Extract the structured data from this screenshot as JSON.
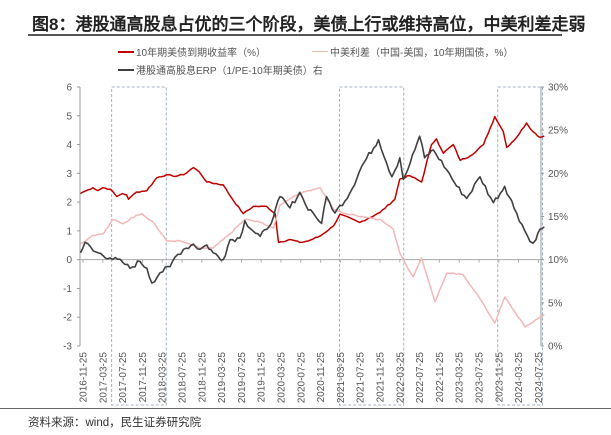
{
  "title": "图8：港股通高股息占优的三个阶段，美债上行或维持高位，中美利差走弱",
  "source": "资料来源：wind，民生证券研究院",
  "chart_data": {
    "type": "line",
    "title": "图8：港股通高股息占优的三个阶段，美债上行或维持高位，中美利差走弱",
    "x_unit": "months since 2016-11-25",
    "x_ticks": [
      "2016-11-25",
      "2017-03-25",
      "2017-07-25",
      "2017-11-25",
      "2018-03-25",
      "2018-07-25",
      "2018-11-25",
      "2019-03-25",
      "2019-07-25",
      "2019-11-25",
      "2020-03-25",
      "2020-07-25",
      "2020-11-25",
      "2021-03-25",
      "2021-07-25",
      "2021-11-25",
      "2022-03-25",
      "2022-07-25",
      "2022-11-25",
      "2023-03-25",
      "2023-07-25",
      "2023-11-25",
      "2024-03-25",
      "2024-07-25"
    ],
    "y_left": {
      "ylim": [
        -3,
        6
      ],
      "ticks": [
        "-3",
        "-2",
        "-1",
        "0",
        "1",
        "2",
        "3",
        "4",
        "5",
        "6"
      ]
    },
    "y_right": {
      "ylim": [
        0,
        30
      ],
      "ticks": [
        "0%",
        "5%",
        "10%",
        "15%",
        "20%",
        "25%",
        "30%"
      ]
    },
    "highlight_periods": [
      [
        "2017-05",
        "2018-03"
      ],
      [
        "2021-03",
        "2022-03"
      ],
      [
        "2023-11",
        "2024-07"
      ]
    ],
    "series": [
      {
        "name": "10年期美债到期收益率（%）",
        "axis": "left",
        "color": "#c00000",
        "points": [
          [
            -0.5,
            2.3
          ],
          [
            0,
            2.35
          ],
          [
            2,
            2.5
          ],
          [
            3,
            2.4
          ],
          [
            4,
            2.5
          ],
          [
            5.5,
            2.45
          ],
          [
            6.8,
            2.2
          ],
          [
            8,
            2.3
          ],
          [
            8.8,
            2.25
          ],
          [
            9.2,
            2.1
          ],
          [
            10.8,
            2.35
          ],
          [
            12.9,
            2.4
          ],
          [
            14.9,
            2.85
          ],
          [
            16.9,
            2.95
          ],
          [
            18.2,
            2.9
          ],
          [
            20.3,
            2.95
          ],
          [
            22.3,
            3.2
          ],
          [
            23.5,
            3.05
          ],
          [
            25,
            2.7
          ],
          [
            28.3,
            2.6
          ],
          [
            30.4,
            2.05
          ],
          [
            32.4,
            1.6
          ],
          [
            34.4,
            1.85
          ],
          [
            37.1,
            1.85
          ],
          [
            38.8,
            1.6
          ],
          [
            39.5,
            0.6
          ],
          [
            41.8,
            0.7
          ],
          [
            43.8,
            0.6
          ],
          [
            45.5,
            0.65
          ],
          [
            47.9,
            0.82
          ],
          [
            50.6,
            1.17
          ],
          [
            51.9,
            1.58
          ],
          [
            55.9,
            1.29
          ],
          [
            60,
            1.64
          ],
          [
            63,
            2.1
          ],
          [
            64,
            2.8
          ],
          [
            66,
            2.92
          ],
          [
            68.4,
            2.7
          ],
          [
            70.4,
            4.0
          ],
          [
            71.4,
            4.2
          ],
          [
            72.8,
            3.7
          ],
          [
            74.8,
            4.0
          ],
          [
            76.2,
            3.45
          ],
          [
            78.2,
            3.6
          ],
          [
            80.9,
            4.0
          ],
          [
            83.2,
            4.97
          ],
          [
            84.9,
            4.45
          ],
          [
            85.6,
            3.9
          ],
          [
            87.6,
            4.25
          ],
          [
            89.6,
            4.75
          ],
          [
            90.9,
            4.45
          ],
          [
            92.3,
            4.25
          ],
          [
            93.2,
            4.3
          ]
        ]
      },
      {
        "name": "中美利差（中国-美国，10年期国债，%）",
        "axis": "left",
        "color": "#f2b8b8",
        "points": [
          [
            -0.5,
            0.55
          ],
          [
            0,
            0.6
          ],
          [
            2,
            0.85
          ],
          [
            4.1,
            0.9
          ],
          [
            6.1,
            1.4
          ],
          [
            8.1,
            1.25
          ],
          [
            10.8,
            1.55
          ],
          [
            11.9,
            1.6
          ],
          [
            14.2,
            1.3
          ],
          [
            16.9,
            0.65
          ],
          [
            19.6,
            0.65
          ],
          [
            23.6,
            0.4
          ],
          [
            26.3,
            0.4
          ],
          [
            29.7,
            0.9
          ],
          [
            32.7,
            1.4
          ],
          [
            35.8,
            1.3
          ],
          [
            38.5,
            1.1
          ],
          [
            39.8,
            1.9
          ],
          [
            42.5,
            2.2
          ],
          [
            45.5,
            2.4
          ],
          [
            47.9,
            2.5
          ],
          [
            50.6,
            1.75
          ],
          [
            53,
            1.6
          ],
          [
            60,
            1.4
          ],
          [
            62.7,
            1.05
          ],
          [
            64,
            0.23
          ],
          [
            66.7,
            -0.6
          ],
          [
            68.4,
            0.06
          ],
          [
            71.1,
            -1.46
          ],
          [
            73.5,
            -0.47
          ],
          [
            76.8,
            -0.53
          ],
          [
            79.5,
            -1.17
          ],
          [
            83.2,
            -2.2
          ],
          [
            85.2,
            -1.3
          ],
          [
            89.3,
            -2.34
          ],
          [
            92.3,
            -2.0
          ],
          [
            93.2,
            -1.9
          ]
        ]
      },
      {
        "name": "港股通高股息ERP（1/PE-10年期美债）右",
        "axis": "right",
        "color": "#404040",
        "points": [
          [
            -0.5,
            10.8
          ],
          [
            0.4,
            12.0
          ],
          [
            2.1,
            11.0
          ],
          [
            5.5,
            10.2
          ],
          [
            8,
            9.7
          ],
          [
            9.5,
            9.0
          ],
          [
            11.5,
            9.8
          ],
          [
            12.9,
            9.0
          ],
          [
            13.9,
            7.3
          ],
          [
            15.6,
            8.5
          ],
          [
            17.6,
            9.2
          ],
          [
            18.6,
            10.3
          ],
          [
            20.3,
            11.2
          ],
          [
            22.3,
            11.8
          ],
          [
            23.6,
            11.2
          ],
          [
            25,
            11.7
          ],
          [
            26.3,
            10.8
          ],
          [
            28.3,
            10.0
          ],
          [
            29.7,
            12.3
          ],
          [
            31.7,
            12.5
          ],
          [
            32.7,
            14.5
          ],
          [
            34.4,
            13.3
          ],
          [
            35.8,
            12.7
          ],
          [
            37.1,
            13.5
          ],
          [
            38.5,
            15.0
          ],
          [
            39.8,
            17.3
          ],
          [
            41.8,
            16.0
          ],
          [
            43.8,
            17.8
          ],
          [
            45,
            16.3
          ],
          [
            46.5,
            15.4
          ],
          [
            48.2,
            14.2
          ],
          [
            49.2,
            17.3
          ],
          [
            50.9,
            15.4
          ],
          [
            53.9,
            17.7
          ],
          [
            56.3,
            20.8
          ],
          [
            59.7,
            23.9
          ],
          [
            62.4,
            19.6
          ],
          [
            64,
            21.8
          ],
          [
            64.7,
            19.3
          ],
          [
            66.1,
            21.2
          ],
          [
            68,
            24.3
          ],
          [
            69,
            21.8
          ],
          [
            70.8,
            22.7
          ],
          [
            73.5,
            20.4
          ],
          [
            75.5,
            18.5
          ],
          [
            77.5,
            17.1
          ],
          [
            80.2,
            19.6
          ],
          [
            82.9,
            16.6
          ],
          [
            85.2,
            18.5
          ],
          [
            87.6,
            15.4
          ],
          [
            90.3,
            12.1
          ],
          [
            91.5,
            12.3
          ],
          [
            92.3,
            13.5
          ],
          [
            93.2,
            13.8
          ]
        ]
      }
    ]
  }
}
